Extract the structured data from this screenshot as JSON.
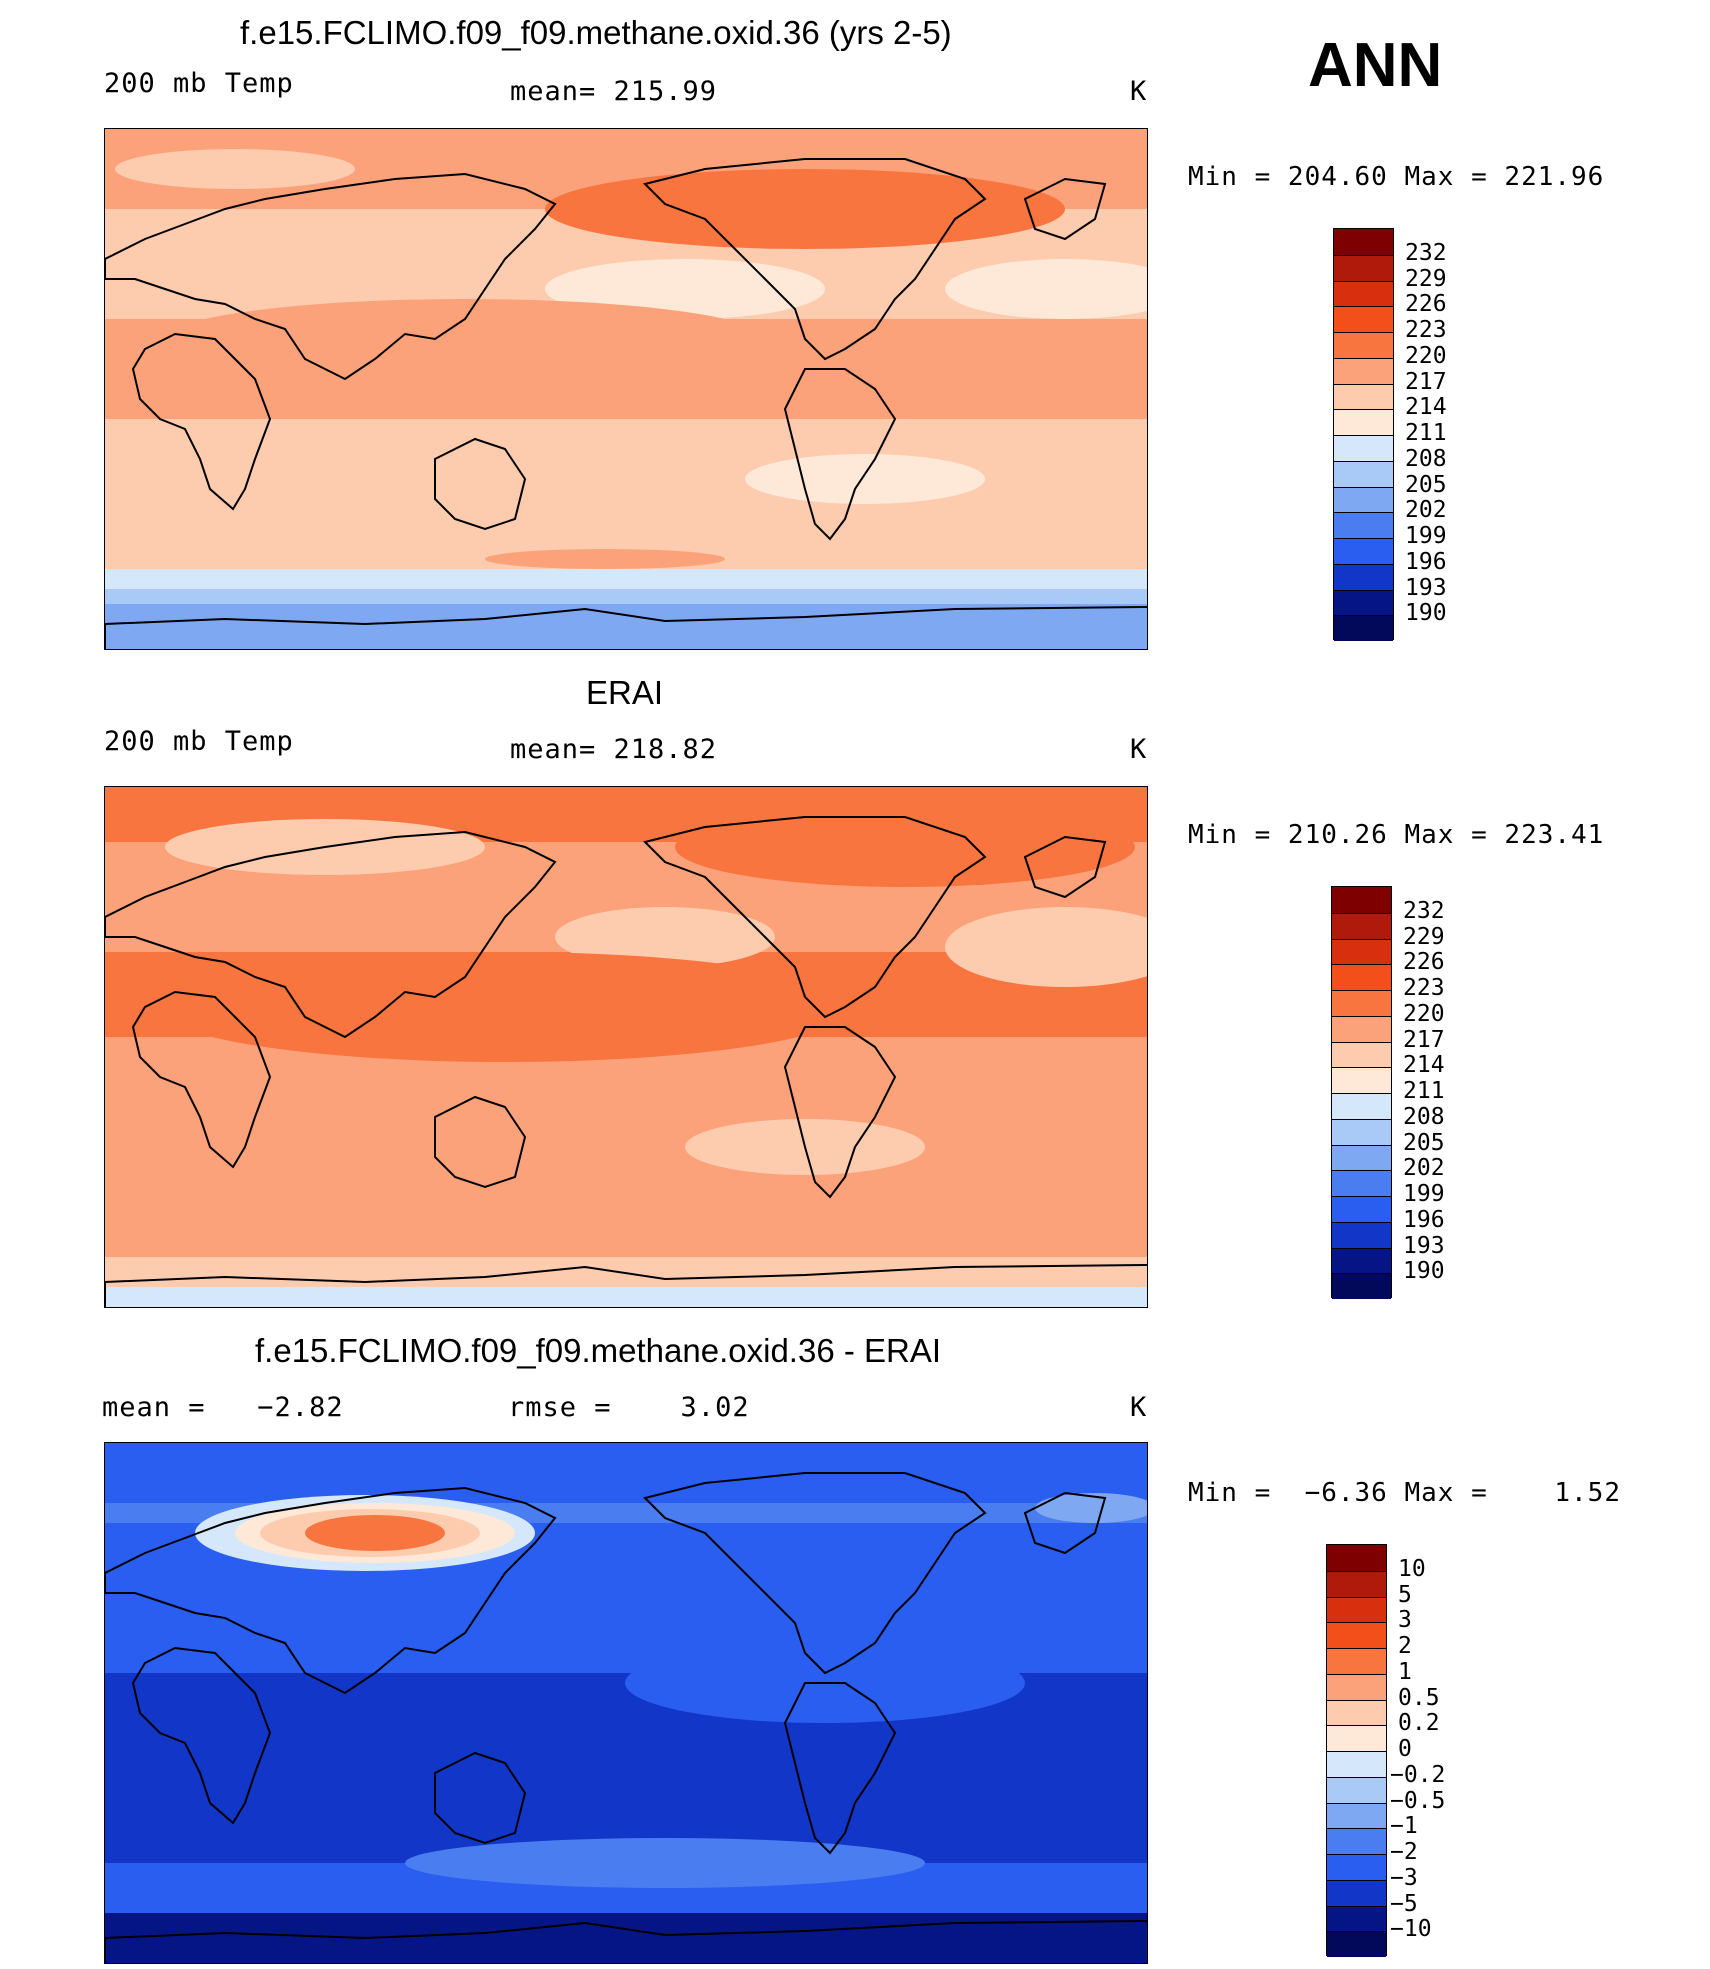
{
  "season": "ANN",
  "panels": [
    {
      "title": "f.e15.FCLIMO.f09_f09.methane.oxid.36 (yrs 2-5)",
      "left_label": "200 mb Temp",
      "mid_label": "mean= 215.99",
      "units": "K",
      "minmax": "Min = 204.60 Max = 221.96",
      "field_type": "temperature",
      "mean": 215.99,
      "min": 204.6,
      "max": 221.96,
      "colorbar": {
        "labels": [
          "232",
          "229",
          "226",
          "223",
          "220",
          "217",
          "214",
          "211",
          "208",
          "205",
          "202",
          "199",
          "196",
          "193",
          "190"
        ],
        "colors": [
          "#7f0000",
          "#b01a0a",
          "#d8300f",
          "#f24f1a",
          "#f8753f",
          "#fba27a",
          "#fdcbae",
          "#fee8d8",
          "#d5e8fb",
          "#a9c9f7",
          "#7fa8f2",
          "#4a7df0",
          "#2a5ef0",
          "#1237c8",
          "#061585",
          "#02085a"
        ]
      }
    },
    {
      "title": "ERAI",
      "left_label": "200 mb Temp",
      "mid_label": "mean= 218.82",
      "units": "K",
      "minmax": "Min = 210.26 Max = 223.41",
      "field_type": "temperature",
      "mean": 218.82,
      "min": 210.26,
      "max": 223.41,
      "colorbar": {
        "labels": [
          "232",
          "229",
          "226",
          "223",
          "220",
          "217",
          "214",
          "211",
          "208",
          "205",
          "202",
          "199",
          "196",
          "193",
          "190"
        ],
        "colors": [
          "#7f0000",
          "#b01a0a",
          "#d8300f",
          "#f24f1a",
          "#f8753f",
          "#fba27a",
          "#fdcbae",
          "#fee8d8",
          "#d5e8fb",
          "#a9c9f7",
          "#7fa8f2",
          "#4a7df0",
          "#2a5ef0",
          "#1237c8",
          "#061585",
          "#02085a"
        ]
      }
    },
    {
      "title": "f.e15.FCLIMO.f09_f09.methane.oxid.36 - ERAI",
      "left_label": "mean =   −2.82",
      "mid_label": "rmse =    3.02",
      "units": "K",
      "minmax": "Min =  −6.36 Max =    1.52",
      "field_type": "difference",
      "mean": -2.82,
      "rmse": 3.02,
      "min": -6.36,
      "max": 1.52,
      "colorbar": {
        "labels": [
          "10",
          "5",
          "3",
          "2",
          "1",
          "0.5",
          "0.2",
          "0",
          "−0.2",
          "−0.5",
          "−1",
          "−2",
          "−3",
          "−5",
          "−10"
        ],
        "colors": [
          "#7f0000",
          "#b01a0a",
          "#d8300f",
          "#f24f1a",
          "#f8753f",
          "#fba27a",
          "#fdcbae",
          "#fee8d8",
          "#d5e8fb",
          "#a9c9f7",
          "#7fa8f2",
          "#4a7df0",
          "#2a5ef0",
          "#1237c8",
          "#061585",
          "#02085a"
        ]
      }
    }
  ]
}
